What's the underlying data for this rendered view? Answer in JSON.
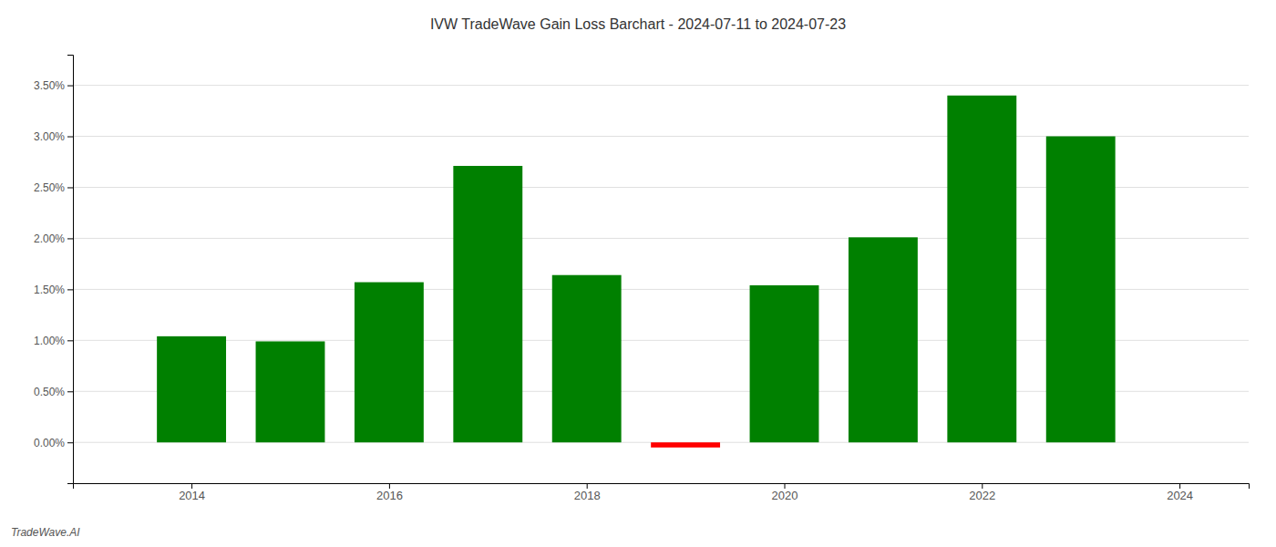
{
  "chart_data": {
    "type": "bar",
    "title": "IVW TradeWave Gain Loss Barchart - 2024-07-11 to 2024-07-23",
    "annotations": [
      "TradeWave.AI"
    ],
    "x": [
      2014,
      2015,
      2016,
      2017,
      2018,
      2019,
      2020,
      2021,
      2022,
      2023
    ],
    "values": [
      0.0104,
      0.0099,
      0.0157,
      0.0271,
      0.0164,
      -0.0005,
      0.0154,
      0.0201,
      0.034,
      0.03
    ],
    "colors": [
      "#008000",
      "#008000",
      "#008000",
      "#008000",
      "#008000",
      "#ff0000",
      "#008000",
      "#008000",
      "#008000",
      "#008000"
    ],
    "xlim": [
      2012.8,
      2024.7
    ],
    "xticks": [
      2014,
      2016,
      2018,
      2020,
      2022,
      2024
    ],
    "ylim": [
      -0.004,
      0.038
    ],
    "yticks": [
      {
        "value": 0,
        "label": "0.00%"
      },
      {
        "value": 0.005,
        "label": "0.50%"
      },
      {
        "value": 0.01,
        "label": "1.00%"
      },
      {
        "value": 0.015,
        "label": "1.50%"
      },
      {
        "value": 0.02,
        "label": "2.00%"
      },
      {
        "value": 0.025,
        "label": "2.50%"
      },
      {
        "value": 0.03,
        "label": "3.00%"
      },
      {
        "value": 0.035,
        "label": "3.50%"
      }
    ],
    "grid": true
  }
}
